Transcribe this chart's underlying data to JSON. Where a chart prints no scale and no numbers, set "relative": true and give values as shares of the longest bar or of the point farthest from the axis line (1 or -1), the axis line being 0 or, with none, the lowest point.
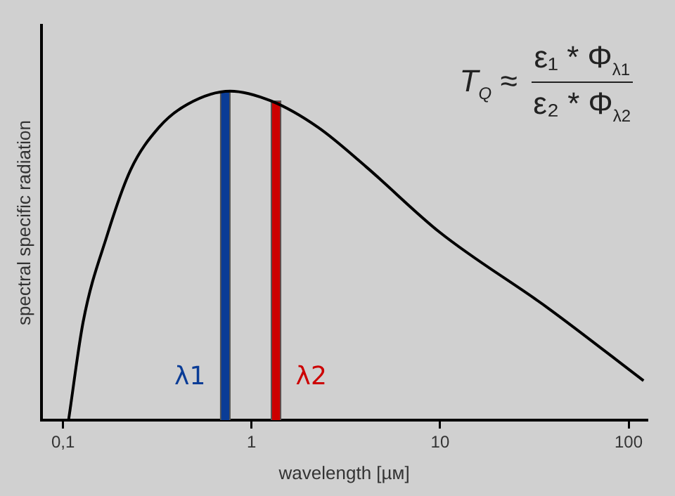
{
  "chart_data": {
    "type": "line",
    "relative": true,
    "xlabel": "wavelength [µм]",
    "ylabel": "spectral specific radiation",
    "log": "x",
    "xlim": [
      0.077,
      125
    ],
    "xticks": [
      {
        "value": 0.1,
        "label": "0,1"
      },
      1,
      10,
      100
    ],
    "grid": false,
    "legend": false,
    "marker": "none",
    "annotations": [
      "T$_{Q}$ ≈",
      "ε₁ * Φ$_{λ1}$",
      "ε₂ * Φ$_{λ2}$"
    ],
    "series": [
      {
        "color": "#000000",
        "x": [
          0.107,
          0.128,
          0.171,
          0.228,
          0.323,
          0.457,
          0.77,
          1.27,
          2.25,
          4.05,
          10,
          37.5,
          120
        ],
        "values": [
          0,
          0.3,
          0.56,
          0.76,
          0.89,
          0.96,
          1,
          0.97,
          0.89,
          0.77,
          0.57,
          0.34,
          0.12
        ]
      },
      {
        "type": "bar",
        "name": "λ1",
        "color": "#0a3c96",
        "x": [
          0.77
        ],
        "values": [
          1
        ]
      },
      {
        "type": "bar",
        "name": "λ2",
        "color": "#cc0000",
        "x": [
          1.27
        ],
        "values": [
          0.97
        ]
      }
    ]
  }
}
